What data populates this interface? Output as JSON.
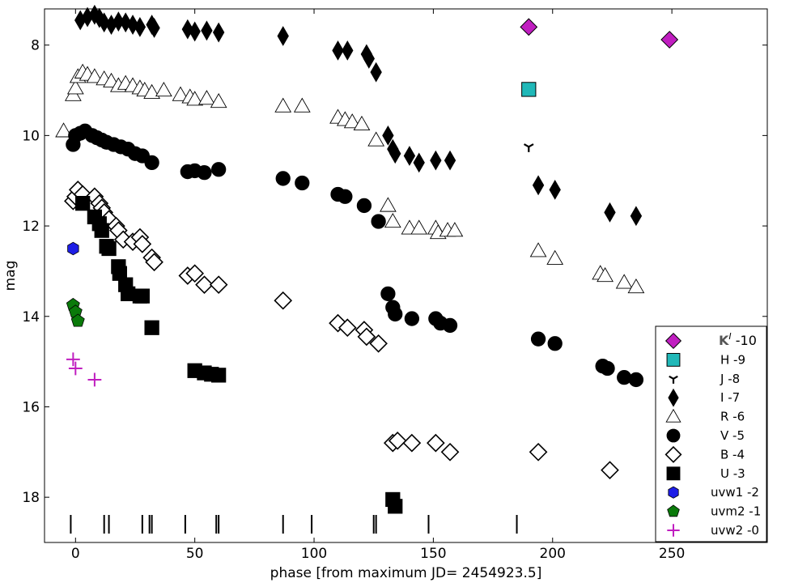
{
  "chart_data": {
    "type": "scatter",
    "xlabel": "phase [from maximum JD= 2454923.5]",
    "ylabel": "mag",
    "xlim": [
      -13,
      290
    ],
    "ylim": [
      19.0,
      7.2
    ],
    "y_inverted": true,
    "xticks": [
      0,
      50,
      100,
      150,
      200,
      250
    ],
    "yticks": [
      8,
      10,
      12,
      14,
      16,
      18
    ],
    "grid": false,
    "legend_position": "bottom-right",
    "epoch_marks": [
      -2,
      12,
      14,
      28,
      31,
      32,
      46,
      59,
      60,
      87,
      99,
      125,
      126,
      148,
      185
    ],
    "series": [
      {
        "name": "K",
        "label_sup": "I",
        "offset": "-10",
        "marker": "diamond",
        "color": "#c01ec0",
        "filled": true,
        "points": [
          [
            190,
            7.6
          ],
          [
            249,
            7.88
          ]
        ]
      },
      {
        "name": "H",
        "offset": "-9",
        "marker": "square",
        "color": "#20b8b8",
        "filled": true,
        "points": [
          [
            190,
            8.98
          ]
        ]
      },
      {
        "name": "J",
        "offset": "-8",
        "marker": "tri",
        "color": "#000000",
        "filled": true,
        "points": [
          [
            190,
            10.25
          ]
        ]
      },
      {
        "name": "I",
        "offset": "-7",
        "marker": "thin_diamond",
        "color": "#000000",
        "filled": true,
        "points": [
          [
            2,
            7.45
          ],
          [
            5,
            7.38
          ],
          [
            8,
            7.33
          ],
          [
            10,
            7.4
          ],
          [
            12,
            7.5
          ],
          [
            15,
            7.55
          ],
          [
            18,
            7.48
          ],
          [
            21,
            7.5
          ],
          [
            24,
            7.55
          ],
          [
            27,
            7.6
          ],
          [
            32,
            7.55
          ],
          [
            33,
            7.62
          ],
          [
            47,
            7.65
          ],
          [
            50,
            7.7
          ],
          [
            55,
            7.68
          ],
          [
            60,
            7.72
          ],
          [
            87,
            7.8
          ],
          [
            110,
            8.12
          ],
          [
            114,
            8.12
          ],
          [
            122,
            8.2
          ],
          [
            123,
            8.3
          ],
          [
            126,
            8.6
          ],
          [
            131,
            10.0
          ],
          [
            133,
            10.3
          ],
          [
            134,
            10.4
          ],
          [
            140,
            10.45
          ],
          [
            144,
            10.6
          ],
          [
            151,
            10.55
          ],
          [
            157,
            10.55
          ],
          [
            194,
            11.1
          ],
          [
            201,
            11.2
          ],
          [
            224,
            11.7
          ],
          [
            235,
            11.78
          ]
        ]
      },
      {
        "name": "R",
        "offset": "-6",
        "marker": "triangle",
        "color": "#000000",
        "filled": false,
        "points": [
          [
            -5,
            9.9
          ],
          [
            -1,
            9.1
          ],
          [
            0,
            8.95
          ],
          [
            1,
            8.7
          ],
          [
            3,
            8.6
          ],
          [
            5,
            8.65
          ],
          [
            8,
            8.7
          ],
          [
            12,
            8.75
          ],
          [
            15,
            8.8
          ],
          [
            18,
            8.9
          ],
          [
            21,
            8.85
          ],
          [
            24,
            8.9
          ],
          [
            27,
            8.95
          ],
          [
            29,
            9.0
          ],
          [
            32,
            9.05
          ],
          [
            37,
            9.0
          ],
          [
            44,
            9.1
          ],
          [
            48,
            9.15
          ],
          [
            50,
            9.2
          ],
          [
            55,
            9.18
          ],
          [
            60,
            9.25
          ],
          [
            87,
            9.35
          ],
          [
            95,
            9.35
          ],
          [
            110,
            9.6
          ],
          [
            113,
            9.65
          ],
          [
            116,
            9.7
          ],
          [
            120,
            9.75
          ],
          [
            126,
            10.1
          ],
          [
            131,
            11.55
          ],
          [
            133,
            11.9
          ],
          [
            140,
            12.05
          ],
          [
            144,
            12.05
          ],
          [
            151,
            12.05
          ],
          [
            152,
            12.15
          ],
          [
            156,
            12.1
          ],
          [
            159,
            12.1
          ],
          [
            194,
            12.55
          ],
          [
            201,
            12.72
          ],
          [
            220,
            13.05
          ],
          [
            222,
            13.1
          ],
          [
            230,
            13.25
          ],
          [
            235,
            13.35
          ]
        ]
      },
      {
        "name": "V",
        "offset": "-5",
        "marker": "circle",
        "color": "#000000",
        "filled": true,
        "points": [
          [
            -1,
            10.2
          ],
          [
            0,
            10.0
          ],
          [
            2,
            9.95
          ],
          [
            4,
            9.9
          ],
          [
            7,
            10.0
          ],
          [
            9,
            10.05
          ],
          [
            11,
            10.1
          ],
          [
            13,
            10.15
          ],
          [
            16,
            10.2
          ],
          [
            19,
            10.25
          ],
          [
            22,
            10.3
          ],
          [
            25,
            10.4
          ],
          [
            28,
            10.45
          ],
          [
            32,
            10.6
          ],
          [
            47,
            10.8
          ],
          [
            50,
            10.78
          ],
          [
            54,
            10.82
          ],
          [
            60,
            10.75
          ],
          [
            87,
            10.95
          ],
          [
            95,
            11.05
          ],
          [
            110,
            11.3
          ],
          [
            113,
            11.35
          ],
          [
            121,
            11.55
          ],
          [
            127,
            11.9
          ],
          [
            131,
            13.5
          ],
          [
            133,
            13.8
          ],
          [
            134,
            13.95
          ],
          [
            141,
            14.05
          ],
          [
            151,
            14.05
          ],
          [
            153,
            14.15
          ],
          [
            157,
            14.2
          ],
          [
            194,
            14.5
          ],
          [
            201,
            14.6
          ],
          [
            221,
            15.1
          ],
          [
            223,
            15.15
          ],
          [
            230,
            15.35
          ],
          [
            235,
            15.4
          ]
        ]
      },
      {
        "name": "B",
        "offset": "-4",
        "marker": "diamond",
        "color": "#000000",
        "filled": false,
        "points": [
          [
            -1,
            11.45
          ],
          [
            0,
            11.35
          ],
          [
            1,
            11.2
          ],
          [
            3,
            11.3
          ],
          [
            8,
            11.35
          ],
          [
            10,
            11.5
          ],
          [
            11,
            11.6
          ],
          [
            12,
            11.7
          ],
          [
            14,
            11.85
          ],
          [
            17,
            12.0
          ],
          [
            18,
            12.1
          ],
          [
            20,
            12.3
          ],
          [
            24,
            12.35
          ],
          [
            27,
            12.25
          ],
          [
            28,
            12.4
          ],
          [
            32,
            12.7
          ],
          [
            33,
            12.8
          ],
          [
            47,
            13.1
          ],
          [
            50,
            13.05
          ],
          [
            54,
            13.3
          ],
          [
            60,
            13.3
          ],
          [
            87,
            13.65
          ],
          [
            110,
            14.15
          ],
          [
            114,
            14.25
          ],
          [
            121,
            14.3
          ],
          [
            122,
            14.45
          ],
          [
            127,
            14.6
          ],
          [
            133,
            16.8
          ],
          [
            135,
            16.75
          ],
          [
            141,
            16.8
          ],
          [
            151,
            16.8
          ],
          [
            157,
            17.0
          ],
          [
            194,
            17.0
          ],
          [
            224,
            17.4
          ]
        ]
      },
      {
        "name": "U",
        "offset": "-3",
        "marker": "square",
        "color": "#000000",
        "filled": true,
        "points": [
          [
            3,
            11.5
          ],
          [
            8,
            11.8
          ],
          [
            10,
            11.95
          ],
          [
            11,
            12.1
          ],
          [
            13,
            12.45
          ],
          [
            14,
            12.5
          ],
          [
            18,
            12.9
          ],
          [
            18.5,
            13.05
          ],
          [
            21,
            13.3
          ],
          [
            22,
            13.5
          ],
          [
            27,
            13.55
          ],
          [
            28,
            13.55
          ],
          [
            32,
            14.25
          ],
          [
            50,
            15.2
          ],
          [
            54,
            15.25
          ],
          [
            57,
            15.28
          ],
          [
            60,
            15.3
          ],
          [
            133,
            18.05
          ],
          [
            134,
            18.2
          ]
        ]
      },
      {
        "name": "uvw1",
        "offset": "-2",
        "marker": "hexagon",
        "color": "#1e1ee6",
        "filled": true,
        "points": [
          [
            -1,
            12.5
          ]
        ]
      },
      {
        "name": "uvm2",
        "offset": "-1",
        "marker": "pentagon",
        "color": "#0a7a0a",
        "filled": true,
        "points": [
          [
            -1,
            13.75
          ],
          [
            0,
            13.9
          ],
          [
            1,
            14.1
          ]
        ]
      },
      {
        "name": "uvw2",
        "offset": "-0",
        "marker": "plus",
        "color": "#c01ec0",
        "filled": true,
        "points": [
          [
            -1,
            14.95
          ],
          [
            0,
            15.15
          ],
          [
            8,
            15.4
          ]
        ]
      }
    ]
  }
}
